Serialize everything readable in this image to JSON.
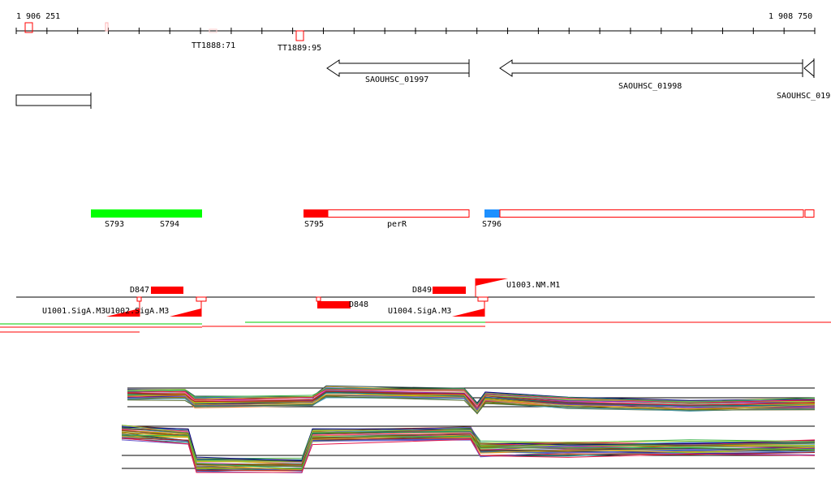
{
  "ruler": {
    "start_label": "1 906 251",
    "end_label": "1 908 750"
  },
  "terminators": [
    "TT1888:71",
    "TT1889:95"
  ],
  "genes": [
    "SAOUHSC_01997",
    "SAOUHSC_01998",
    "SAOUHSC_019"
  ],
  "segments": [
    "S793",
    "S794",
    "S795",
    "perR",
    "S796"
  ],
  "features": {
    "d847": "D847",
    "d848": "D848",
    "d849": "D849",
    "u1001": "U1001.SigA.M3",
    "u1002": "U1002.SigA.M3",
    "u1003": "U1003.NM.M1",
    "u1004": "U1004.SigA.M3"
  },
  "colors": {
    "red": "#ff0000",
    "green": "#00ff00",
    "blue": "#1e90ff",
    "black": "#000000"
  }
}
